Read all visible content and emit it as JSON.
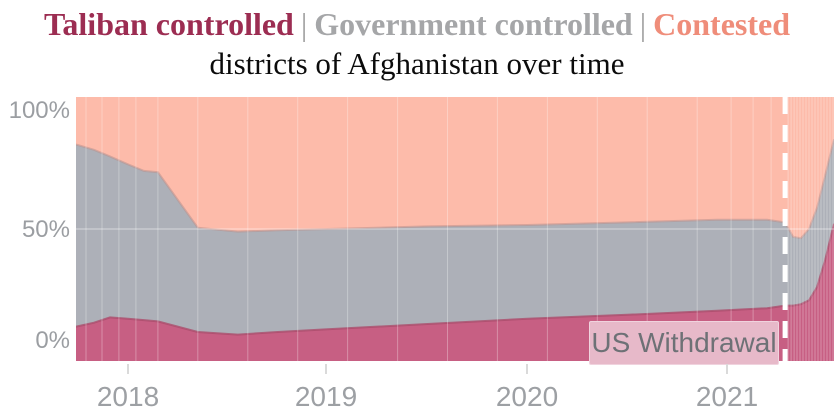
{
  "title": {
    "line1": [
      {
        "label": "Taliban controlled",
        "color": "#9c2d52"
      },
      {
        "label": "Government controlled",
        "color": "#a5a6a8"
      },
      {
        "label": "Contested",
        "color": "#ef8d7a"
      }
    ],
    "separator": "|",
    "line2": "districts of Afghanistan over time"
  },
  "colors": {
    "taliban_area": "#c75f83",
    "taliban_edge": "#aa4c6c",
    "government_area": "#adb0b8",
    "government_edge": "#bb8f8a",
    "contested_area": "#fdbbaa",
    "axis_label": "#9da0a4",
    "withdrawal_line": "#ffffff",
    "annotation_bg": "#e7b9c9",
    "annotation_text": "#6e7176",
    "gridline": "rgba(255,255,255,0.30)"
  },
  "chart_data": {
    "type": "area",
    "stacked": true,
    "unit": "percent of districts",
    "title": "Taliban controlled | Government controlled | Contested districts of Afghanistan over time",
    "xlabel": "",
    "ylabel": "",
    "ylim": [
      0,
      100
    ],
    "x_range": [
      2017.74,
      2021.535
    ],
    "x_tick_years": [
      2018,
      2019,
      2020,
      2021
    ],
    "x_tick_labels": [
      "2018",
      "2019",
      "2020",
      "2021"
    ],
    "y_tick_values": [
      100,
      50,
      0
    ],
    "y_tick_labels": [
      "100%",
      "50%",
      "0%"
    ],
    "legend_position": "in-title",
    "grid": true,
    "x": [
      2017.74,
      2017.83,
      2017.91,
      2018.0,
      2018.08,
      2018.15,
      2018.35,
      2018.55,
      2018.75,
      2019.0,
      2019.5,
      2020.0,
      2020.5,
      2020.95,
      2021.2,
      2021.29,
      2021.33,
      2021.37,
      2021.41,
      2021.45,
      2021.49,
      2021.535
    ],
    "series": [
      {
        "name": "Taliban controlled",
        "color": "#c75f83",
        "values": [
          13,
          14.5,
          16.5,
          16,
          15.5,
          15,
          11,
          10,
          11,
          12,
          14,
          16,
          17.5,
          19,
          20,
          21,
          21,
          21.5,
          23,
          28,
          38,
          52
        ]
      },
      {
        "name": "Government controlled",
        "color": "#adb0b8",
        "values": [
          69,
          65.5,
          61,
          58.5,
          56.5,
          56.5,
          39.5,
          39,
          38.5,
          38,
          37,
          35.5,
          35,
          34.5,
          33.5,
          31.5,
          26,
          25,
          27,
          30,
          32,
          32
        ]
      },
      {
        "name": "Contested",
        "color": "#fdbbaa",
        "values": [
          18,
          20,
          22.5,
          25.5,
          28,
          28.5,
          49.5,
          51,
          50.5,
          50,
          49,
          48.5,
          47.5,
          46.5,
          46.5,
          47.5,
          53,
          53.5,
          50,
          42,
          30,
          16
        ]
      }
    ],
    "annotation": {
      "label": "US Withdrawal",
      "x": 2021.29,
      "style": "white-dashed-vertical-line"
    },
    "gridlines_x": [
      2017.79,
      2017.87,
      2017.955,
      2018.04,
      2018.15,
      2018.35,
      2018.6,
      2018.85,
      2019.1,
      2019.35,
      2019.6,
      2019.85,
      2020.1,
      2020.35,
      2020.6,
      2020.85,
      2021.02,
      2021.13,
      2021.22,
      2021.305,
      2021.32,
      2021.335,
      2021.35,
      2021.365,
      2021.38,
      2021.395,
      2021.41,
      2021.425,
      2021.44,
      2021.455,
      2021.47,
      2021.485,
      2021.5,
      2021.515,
      2021.53
    ],
    "gridlines_y": [
      50
    ]
  }
}
